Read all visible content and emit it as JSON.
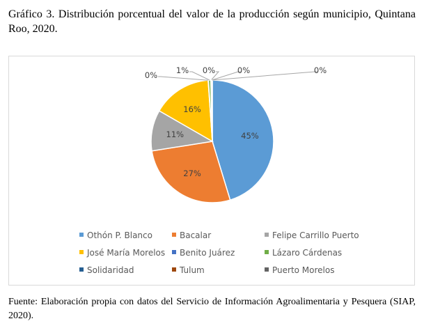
{
  "title": "Gráfico 3. Distribución porcentual del valor de la producción según municipio, Quintana Roo, 2020.",
  "source": "Fuente: Elaboración propia con datos del Servicio de Información Agroalimentaria y Pesquera (SIAP, 2020).",
  "chart_data": {
    "type": "pie",
    "categories": [
      "Othón P. Blanco",
      "Bacalar",
      "Felipe Carrillo Puerto",
      "José María Morelos",
      "Benito Juárez",
      "Lázaro Cárdenas",
      "Solidaridad",
      "Tulum",
      "Puerto Morelos"
    ],
    "values": [
      45.3,
      27.2,
      10.8,
      15.6,
      0.1,
      0.6,
      0.2,
      0.1,
      0.1
    ],
    "labels": [
      "45%",
      "27%",
      "11%",
      "16%",
      "0%",
      "1%",
      "0%",
      "0%",
      "0%"
    ],
    "colors": [
      "#5b9bd5",
      "#ed7d31",
      "#a5a5a5",
      "#ffc000",
      "#4472c4",
      "#70ad47",
      "#255e91",
      "#9e480e",
      "#636363"
    ],
    "legend_position": "bottom"
  }
}
